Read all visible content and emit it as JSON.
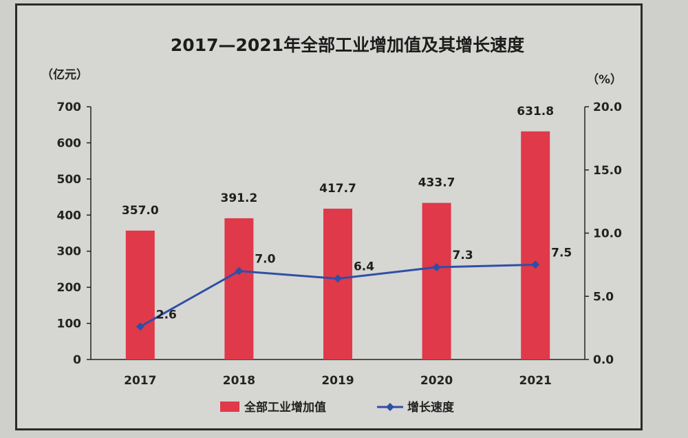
{
  "colors": {
    "bar": "#e0394a",
    "line": "#2f4fa6",
    "axis": "#222222",
    "text": "#1e1e1e"
  },
  "chart_data": {
    "type": "bar",
    "title": "2017—2021年全部工业增加值及其增长速度",
    "left_unit": "（亿元）",
    "right_unit": "（%）",
    "categories": [
      "2017",
      "2018",
      "2019",
      "2020",
      "2021"
    ],
    "left_axis": {
      "ylim": [
        0,
        700
      ],
      "ticks": [
        "0",
        "100",
        "200",
        "300",
        "400",
        "500",
        "600",
        "700"
      ]
    },
    "right_axis": {
      "ylim": [
        0,
        20
      ],
      "ticks": [
        "0.0",
        "5.0",
        "10.0",
        "15.0",
        "20.0"
      ]
    },
    "series": [
      {
        "name": "全部工业增加值",
        "type": "bar",
        "axis": "left",
        "values": [
          357.0,
          391.2,
          417.7,
          433.7,
          631.8
        ],
        "labels": [
          "357.0",
          "391.2",
          "417.7",
          "433.7",
          "631.8"
        ]
      },
      {
        "name": "增长速度",
        "type": "line",
        "axis": "right",
        "values": [
          2.6,
          7.0,
          6.4,
          7.3,
          7.5
        ],
        "labels": [
          "2.6",
          "7.0",
          "6.4",
          "7.3",
          "7.5"
        ]
      }
    ],
    "legend_position": "bottom",
    "grid": false
  }
}
